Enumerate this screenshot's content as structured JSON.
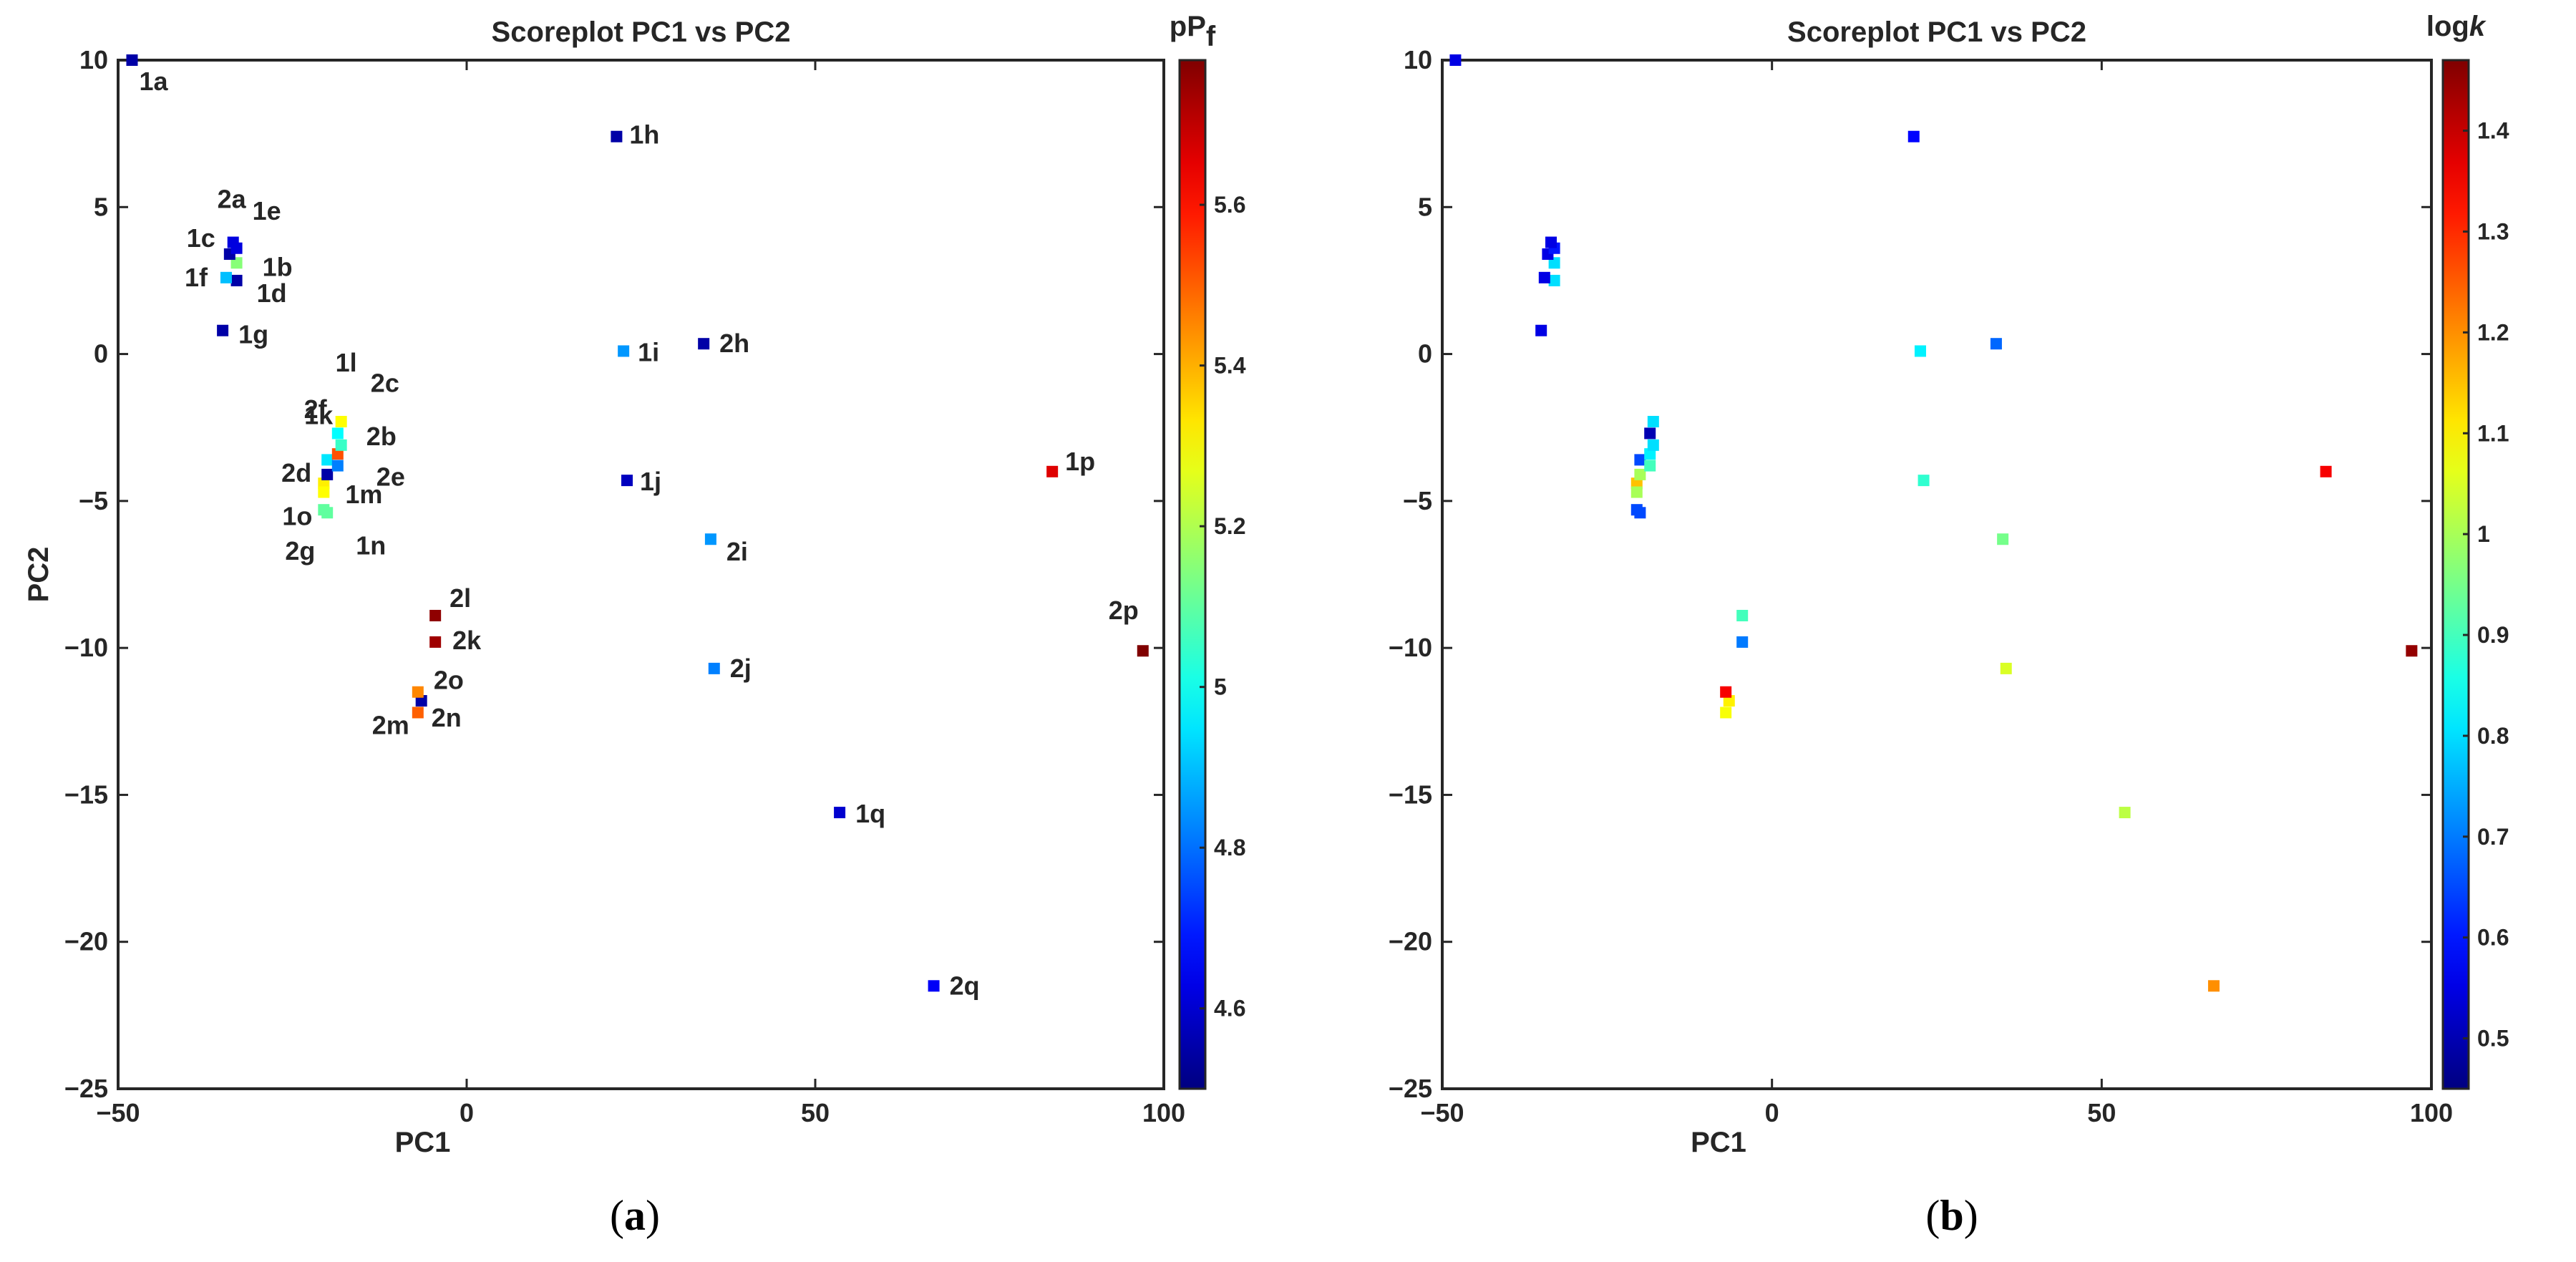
{
  "chart_data": [
    {
      "type": "scatter",
      "panel_label_prefix": "(",
      "panel_label_letter": "a",
      "panel_label_suffix": ")",
      "title": "Scoreplot PC1 vs PC2",
      "xlabel": "PC1",
      "ylabel": "PC2",
      "xlim": [
        -50,
        100
      ],
      "ylim": [
        -25,
        10
      ],
      "xticks": [
        -50,
        0,
        50,
        100
      ],
      "yticks": [
        -25,
        -20,
        -15,
        -10,
        -5,
        0,
        5,
        10
      ],
      "show_point_labels": true,
      "colorbar": {
        "label": "pP",
        "label_sub": "f",
        "range": [
          4.5,
          5.78
        ],
        "ticks": [
          4.6,
          4.8,
          5,
          5.2,
          5.4,
          5.6
        ],
        "tick_labels": [
          "4.6",
          "4.8",
          "5",
          "5.2",
          "5.4",
          "5.6"
        ]
      },
      "points": [
        {
          "label": "1a",
          "x": -48,
          "y": 10,
          "c": 4.55
        },
        {
          "label": "1b",
          "x": -33,
          "y": 3.1,
          "c": 5.15
        },
        {
          "label": "1c",
          "x": -34,
          "y": 3.4,
          "c": 4.55
        },
        {
          "label": "1d",
          "x": -33,
          "y": 2.5,
          "c": 4.55
        },
        {
          "label": "1e",
          "x": -33,
          "y": 3.6,
          "c": 4.62
        },
        {
          "label": "1f",
          "x": -34.5,
          "y": 2.6,
          "c": 4.9
        },
        {
          "label": "1g",
          "x": -35,
          "y": 0.8,
          "c": 4.55
        },
        {
          "label": "1h",
          "x": 21.5,
          "y": 7.4,
          "c": 4.55
        },
        {
          "label": "1i",
          "x": 22.5,
          "y": 0.1,
          "c": 4.85
        },
        {
          "label": "1j",
          "x": 23,
          "y": -4.3,
          "c": 4.58
        },
        {
          "label": "1k",
          "x": -20,
          "y": -3.6,
          "c": 4.95
        },
        {
          "label": "1l",
          "x": -18,
          "y": -2.3,
          "c": 5.3
        },
        {
          "label": "1m",
          "x": -20.5,
          "y": -4.4,
          "c": 5.32
        },
        {
          "label": "1n",
          "x": -20,
          "y": -5.4,
          "c": 5.1
        },
        {
          "label": "1o",
          "x": -20.5,
          "y": -4.7,
          "c": 5.3
        },
        {
          "label": "1p",
          "x": 84,
          "y": -4,
          "c": 5.66
        },
        {
          "label": "1q",
          "x": 53.5,
          "y": -15.6,
          "c": 4.6
        },
        {
          "label": "2a",
          "x": -33.5,
          "y": 3.8,
          "c": 4.62
        },
        {
          "label": "2b",
          "x": -18.5,
          "y": -3.4,
          "c": 5.52
        },
        {
          "label": "2c",
          "x": -18.5,
          "y": -2.7,
          "c": 4.98
        },
        {
          "label": "2d",
          "x": -20,
          "y": -4.1,
          "c": 4.55
        },
        {
          "label": "2e",
          "x": -18.5,
          "y": -3.8,
          "c": 4.82
        },
        {
          "label": "2f",
          "x": -18,
          "y": -3.1,
          "c": 5.05
        },
        {
          "label": "2g",
          "x": -20.5,
          "y": -5.3,
          "c": 5.1
        },
        {
          "label": "2h",
          "x": 34,
          "y": 0.35,
          "c": 4.55
        },
        {
          "label": "2i",
          "x": 35,
          "y": -6.3,
          "c": 4.85
        },
        {
          "label": "2j",
          "x": 35.5,
          "y": -10.7,
          "c": 4.82
        },
        {
          "label": "2k",
          "x": -4.5,
          "y": -9.8,
          "c": 5.74
        },
        {
          "label": "2l",
          "x": -4.5,
          "y": -8.9,
          "c": 5.76
        },
        {
          "label": "2m",
          "x": -7,
          "y": -12.2,
          "c": 5.5
        },
        {
          "label": "2n",
          "x": -6.5,
          "y": -11.8,
          "c": 4.55
        },
        {
          "label": "2o",
          "x": -7,
          "y": -11.5,
          "c": 5.45
        },
        {
          "label": "2p",
          "x": 97,
          "y": -10.1,
          "c": 5.78
        },
        {
          "label": "2q",
          "x": 67,
          "y": -21.5,
          "c": 4.65
        }
      ]
    },
    {
      "type": "scatter",
      "panel_label_prefix": "(",
      "panel_label_letter": "b",
      "panel_label_suffix": ")",
      "title": "Scoreplot PC1 vs PC2",
      "xlabel": "PC1",
      "ylabel": "",
      "xlim": [
        -50,
        100
      ],
      "ylim": [
        -25,
        10
      ],
      "xticks": [
        -50,
        0,
        50,
        100
      ],
      "yticks": [
        -25,
        -20,
        -15,
        -10,
        -5,
        0,
        5,
        10
      ],
      "show_point_labels": false,
      "colorbar": {
        "label": "log",
        "label_sub": "k",
        "range": [
          0.45,
          1.47
        ],
        "ticks": [
          0.5,
          0.6,
          0.7,
          0.8,
          0.9,
          1,
          1.1,
          1.2,
          1.3,
          1.4
        ],
        "tick_labels": [
          "0.5",
          "0.6",
          "0.7",
          "0.8",
          "0.9",
          "1",
          "1.1",
          "1.2",
          "1.3",
          "1.4"
        ]
      },
      "points": [
        {
          "label": "1a",
          "x": -48,
          "y": 10,
          "c": 0.55
        },
        {
          "label": "1b",
          "x": -33,
          "y": 3.1,
          "c": 0.8
        },
        {
          "label": "1c",
          "x": -34,
          "y": 3.4,
          "c": 0.55
        },
        {
          "label": "1d",
          "x": -33,
          "y": 2.5,
          "c": 0.8
        },
        {
          "label": "1e",
          "x": -33,
          "y": 3.6,
          "c": 0.6
        },
        {
          "label": "1f",
          "x": -34.5,
          "y": 2.6,
          "c": 0.55
        },
        {
          "label": "1g",
          "x": -35,
          "y": 0.8,
          "c": 0.55
        },
        {
          "label": "1h",
          "x": 21.5,
          "y": 7.4,
          "c": 0.58
        },
        {
          "label": "1i",
          "x": 22.5,
          "y": 0.1,
          "c": 0.82
        },
        {
          "label": "1j",
          "x": 23,
          "y": -4.3,
          "c": 0.88
        },
        {
          "label": "1k",
          "x": -20,
          "y": -3.6,
          "c": 0.65
        },
        {
          "label": "1l",
          "x": -18,
          "y": -2.3,
          "c": 0.8
        },
        {
          "label": "1m",
          "x": -20.5,
          "y": -4.4,
          "c": 1.15
        },
        {
          "label": "1n",
          "x": -20,
          "y": -5.4,
          "c": 0.65
        },
        {
          "label": "1o",
          "x": -20.5,
          "y": -4.7,
          "c": 1.0
        },
        {
          "label": "1p",
          "x": 84,
          "y": -4,
          "c": 1.35
        },
        {
          "label": "1q",
          "x": 53.5,
          "y": -15.6,
          "c": 1.02
        },
        {
          "label": "2a",
          "x": -33.5,
          "y": 3.8,
          "c": 0.55
        },
        {
          "label": "2b",
          "x": -18.5,
          "y": -3.4,
          "c": 0.82
        },
        {
          "label": "2c",
          "x": -18.5,
          "y": -2.7,
          "c": 0.5
        },
        {
          "label": "2d",
          "x": -20,
          "y": -4.1,
          "c": 1.0
        },
        {
          "label": "2e",
          "x": -18.5,
          "y": -3.8,
          "c": 0.9
        },
        {
          "label": "2f",
          "x": -18,
          "y": -3.1,
          "c": 0.8
        },
        {
          "label": "2g",
          "x": -20.5,
          "y": -5.3,
          "c": 0.65
        },
        {
          "label": "2h",
          "x": 34,
          "y": 0.35,
          "c": 0.68
        },
        {
          "label": "2i",
          "x": 35,
          "y": -6.3,
          "c": 0.95
        },
        {
          "label": "2j",
          "x": 35.5,
          "y": -10.7,
          "c": 1.05
        },
        {
          "label": "2k",
          "x": -4.5,
          "y": -9.8,
          "c": 0.7
        },
        {
          "label": "2l",
          "x": -4.5,
          "y": -8.9,
          "c": 0.9
        },
        {
          "label": "2m",
          "x": -7,
          "y": -12.2,
          "c": 1.08
        },
        {
          "label": "2n",
          "x": -6.5,
          "y": -11.8,
          "c": 1.1
        },
        {
          "label": "2o",
          "x": -7,
          "y": -11.5,
          "c": 1.35
        },
        {
          "label": "2p",
          "x": 97,
          "y": -10.1,
          "c": 1.45
        },
        {
          "label": "2q",
          "x": 67,
          "y": -21.5,
          "c": 1.2
        }
      ]
    }
  ]
}
